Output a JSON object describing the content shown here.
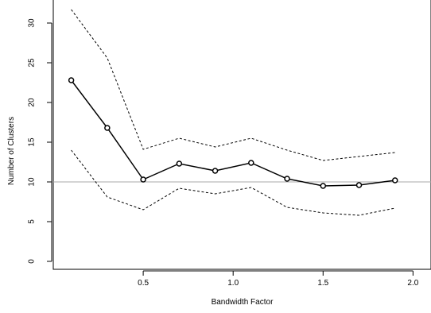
{
  "chart_data": {
    "type": "line",
    "title": "",
    "xlabel": "Bandwidth Factor",
    "ylabel": "Number of Clusters",
    "xlim": [
      0.0,
      2.1
    ],
    "ylim": [
      -1,
      33
    ],
    "x_ticks": [
      0.5,
      1.0,
      1.5,
      2.0
    ],
    "x_tick_labels": [
      "0.5",
      "1.0",
      "1.5",
      "2.0"
    ],
    "y_ticks": [
      0,
      5,
      10,
      15,
      20,
      25,
      30
    ],
    "y_tick_labels": [
      "0",
      "5",
      "10",
      "15",
      "20",
      "25",
      "30"
    ],
    "reference_line_y": 10,
    "grid": false,
    "series": [
      {
        "style": "solid-with-circles",
        "x": [
          0.1,
          0.3,
          0.5,
          0.7,
          0.9,
          1.1,
          1.3,
          1.5,
          1.7,
          1.9
        ],
        "values": [
          22.8,
          16.8,
          10.3,
          12.3,
          11.4,
          12.4,
          10.4,
          9.5,
          9.6,
          10.2
        ]
      },
      {
        "style": "dashed-upper",
        "x": [
          0.1,
          0.3,
          0.5,
          0.7,
          0.9,
          1.1,
          1.3,
          1.5,
          1.7,
          1.9
        ],
        "values": [
          31.7,
          25.6,
          14.1,
          15.5,
          14.4,
          15.5,
          14.0,
          12.7,
          13.2,
          13.7
        ]
      },
      {
        "style": "dashed-lower",
        "x": [
          0.1,
          0.3,
          0.5,
          0.7,
          0.9,
          1.1,
          1.3,
          1.5,
          1.7,
          1.9
        ],
        "values": [
          14.0,
          8.1,
          6.5,
          9.2,
          8.5,
          9.3,
          6.8,
          6.1,
          5.8,
          6.7
        ]
      }
    ],
    "colors": {
      "line": "#000000",
      "reference": "#aaaaaa",
      "background": "#ffffff"
    }
  }
}
